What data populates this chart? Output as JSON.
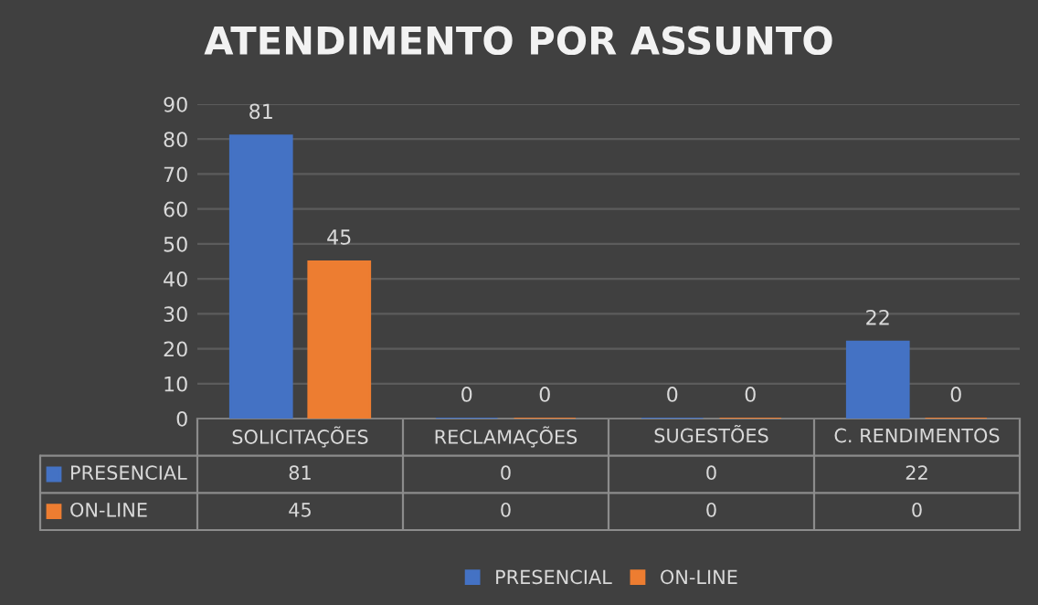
{
  "chart_data": {
    "type": "bar",
    "title": "ATENDIMENTO POR ASSUNTO",
    "categories": [
      "SOLICITAÇÕES",
      "RECLAMAÇÕES",
      "SUGESTÕES",
      "C. RENDIMENTOS"
    ],
    "series": [
      {
        "name": "PRESENCIAL",
        "color": "#4472c4",
        "values": [
          81,
          0,
          0,
          22
        ],
        "value_labels": [
          "81",
          "0",
          "0",
          "22"
        ]
      },
      {
        "name": "ON-LINE",
        "color": "#ed7d31",
        "values": [
          45,
          0,
          0,
          0
        ],
        "value_labels": [
          "45",
          "0",
          "0",
          "0"
        ]
      }
    ],
    "annotations": [
      "81",
      "0",
      "0",
      "22",
      "45",
      "0",
      "0",
      "0"
    ],
    "ylim": [
      0,
      90
    ],
    "yticks": [
      0,
      10,
      20,
      30,
      40,
      50,
      60,
      70,
      80,
      90
    ],
    "grid": "y",
    "legend": "bottom"
  }
}
